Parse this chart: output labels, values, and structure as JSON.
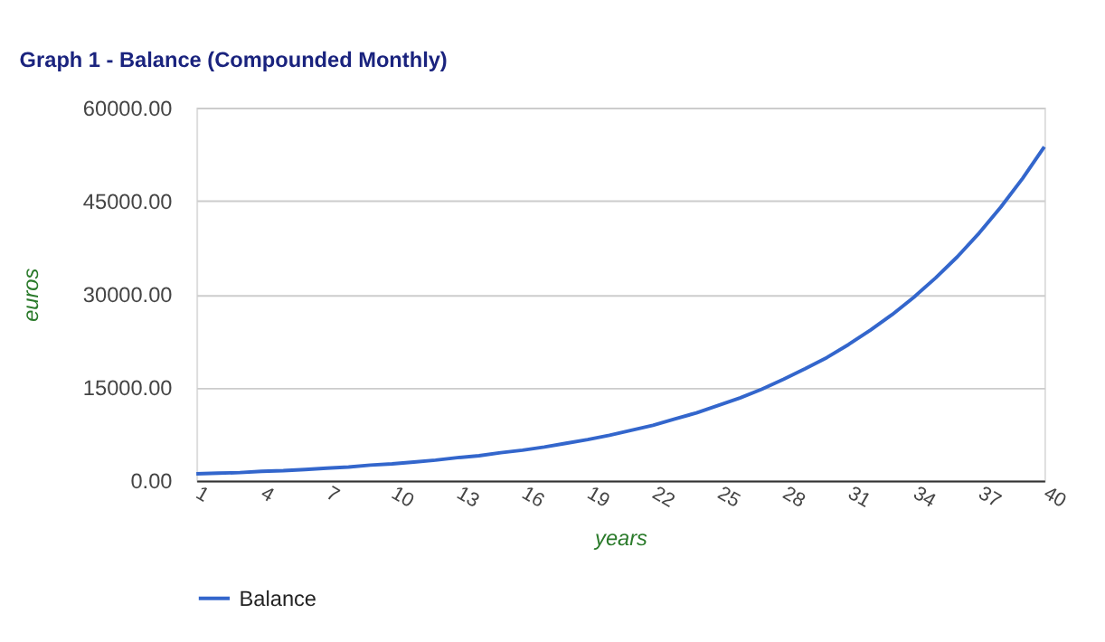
{
  "chart_data": {
    "type": "line",
    "title": "Graph 1 - Balance (Compounded Monthly)",
    "xlabel": "years",
    "ylabel": "euros",
    "categories": [
      "1",
      null,
      null,
      "4",
      null,
      null,
      "7",
      null,
      null,
      "10",
      null,
      null,
      "13",
      null,
      null,
      "16",
      null,
      null,
      "19",
      null,
      null,
      "22",
      null,
      null,
      "25",
      null,
      null,
      "28",
      null,
      null,
      "31",
      null,
      null,
      "34",
      null,
      null,
      "37",
      null,
      null,
      "40"
    ],
    "series": [
      {
        "name": "Balance",
        "color": "#3366cc",
        "values": [
          1100,
          1200,
          1300,
          1500,
          1600,
          1800,
          2000,
          2200,
          2500,
          2700,
          3000,
          3300,
          3700,
          4000,
          4500,
          4900,
          5400,
          6000,
          6600,
          7300,
          8100,
          8900,
          9900,
          10900,
          12100,
          13300,
          14700,
          16300,
          18000,
          19800,
          21900,
          24200,
          26700,
          29500,
          32600,
          36000,
          39800,
          44000,
          48600,
          53700
        ]
      }
    ],
    "ylim": [
      0,
      60000
    ],
    "yticks": [
      {
        "value": 0,
        "label": "0.00"
      },
      {
        "value": 15000,
        "label": "15000.00"
      },
      {
        "value": 30000,
        "label": "30000.00"
      },
      {
        "value": 45000,
        "label": "45000.00"
      },
      {
        "value": 60000,
        "label": "60000.00"
      }
    ],
    "grid": "y",
    "legend": "bottom",
    "line_style": "solid",
    "marker": "none"
  }
}
